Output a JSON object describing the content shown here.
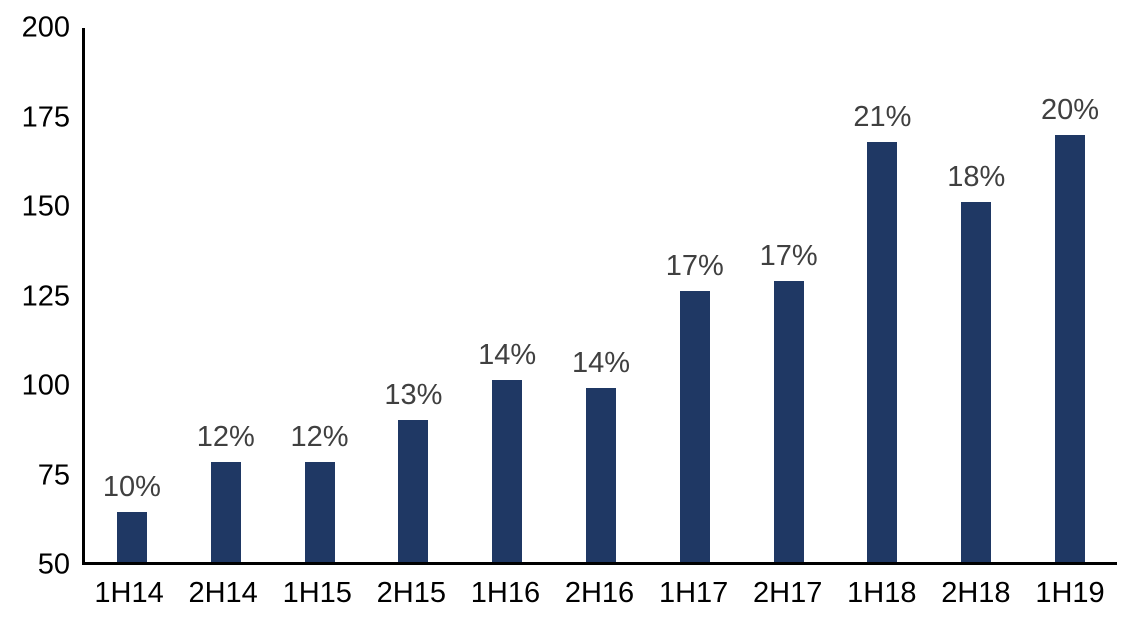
{
  "chart_data": {
    "type": "bar",
    "title": "",
    "xlabel": "",
    "ylabel": "",
    "categories": [
      "1H14",
      "2H14",
      "1H15",
      "2H15",
      "1H16",
      "2H16",
      "1H17",
      "2H17",
      "1H18",
      "2H18",
      "1H19"
    ],
    "values": [
      64,
      78,
      78,
      90,
      101,
      99,
      126,
      129,
      168,
      151,
      170
    ],
    "bar_labels": [
      "10%",
      "12%",
      "12%",
      "13%",
      "14%",
      "14%",
      "17%",
      "17%",
      "21%",
      "18%",
      "20%"
    ],
    "ylim": [
      50,
      200
    ],
    "yticks": [
      50,
      75,
      100,
      125,
      150,
      175,
      200
    ],
    "grid": false,
    "legend": false,
    "colors": {
      "bar": "#1F3864",
      "bar_label": "#404040",
      "axis": "#000000",
      "tick_label": "#000000",
      "background": "#FFFFFF"
    }
  }
}
